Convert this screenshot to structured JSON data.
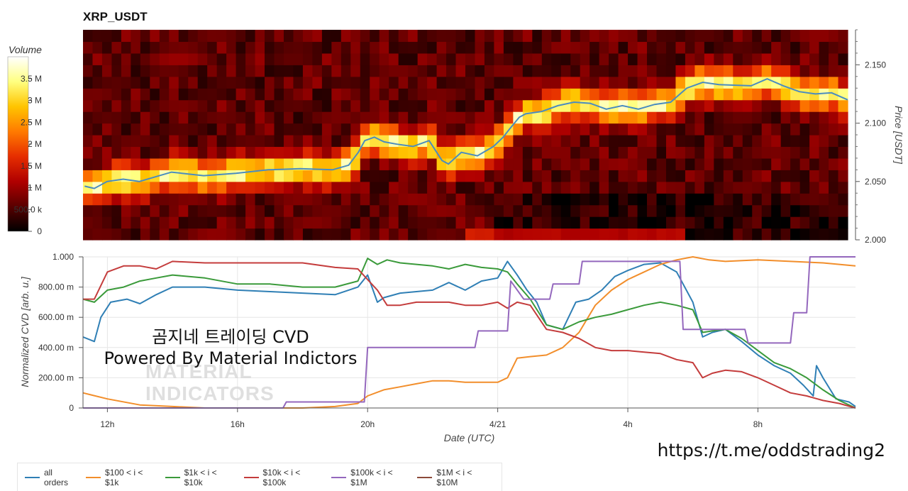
{
  "title": "XRP_USDT",
  "colorbar": {
    "title": "Volume",
    "ticks": [
      {
        "value": 0,
        "label": "0"
      },
      {
        "value": 500000,
        "label": "500.0 k"
      },
      {
        "value": 1000000,
        "label": "1 M"
      },
      {
        "value": 1500000,
        "label": "1.5 M"
      },
      {
        "value": 2000000,
        "label": "2 M"
      },
      {
        "value": 2500000,
        "label": "2.5 M"
      },
      {
        "value": 3000000,
        "label": "3 M"
      },
      {
        "value": 3500000,
        "label": "3.5 M"
      }
    ],
    "max": 4000000,
    "palette": [
      "#000000",
      "#5a0000",
      "#b00000",
      "#e62e00",
      "#ff7a00",
      "#ffc400",
      "#ffff80",
      "#ffffff"
    ]
  },
  "overlay_text": [
    "곰지네 트레이딩 CVD",
    "Powered By Material Indictors"
  ],
  "watermark": [
    "MATERIAL",
    "INDICATORS"
  ],
  "url": "https://t.me/oddstrading2",
  "chart_data": [
    {
      "type": "heatmap",
      "title": "XRP_USDT",
      "ylabel": "Price [USDT]",
      "ylim": [
        2.0,
        2.18
      ],
      "yticks": [
        {
          "value": 2.0,
          "label": "2.000"
        },
        {
          "value": 2.05,
          "label": "2.050"
        },
        {
          "value": 2.1,
          "label": "2.100"
        },
        {
          "value": 2.15,
          "label": "2.150"
        }
      ],
      "xlim": [
        11.25,
        35.0
      ],
      "price_line_color": "#4a8cc0",
      "price_line": {
        "x": [
          11.3,
          11.6,
          12.0,
          12.5,
          13.0,
          13.5,
          14.0,
          15.0,
          16.0,
          17.0,
          18.0,
          19.0,
          19.5,
          19.8,
          20.0,
          20.3,
          20.6,
          21.0,
          21.5,
          22.0,
          22.4,
          22.6,
          23.0,
          23.5,
          24.0,
          24.3,
          24.5,
          24.8,
          25.0,
          25.5,
          26.0,
          26.5,
          27.0,
          27.5,
          28.0,
          28.5,
          29.0,
          29.5,
          30.0,
          30.5,
          31.0,
          32.0,
          32.5,
          33.0,
          33.5,
          34.0,
          34.5,
          35.0
        ],
        "y": [
          2.046,
          2.044,
          2.05,
          2.052,
          2.05,
          2.054,
          2.058,
          2.055,
          2.057,
          2.06,
          2.061,
          2.06,
          2.064,
          2.075,
          2.085,
          2.088,
          2.084,
          2.082,
          2.08,
          2.085,
          2.068,
          2.065,
          2.075,
          2.072,
          2.08,
          2.088,
          2.095,
          2.105,
          2.108,
          2.11,
          2.115,
          2.118,
          2.117,
          2.112,
          2.115,
          2.112,
          2.116,
          2.118,
          2.13,
          2.135,
          2.133,
          2.132,
          2.138,
          2.132,
          2.127,
          2.125,
          2.126,
          2.12
        ]
      }
    },
    {
      "type": "line",
      "xlabel": "Date (UTC)",
      "ylabel": "Normalized CVD [arb. u.]",
      "ylim": [
        0,
        1
      ],
      "yticks": [
        {
          "value": 0,
          "label": "0"
        },
        {
          "value": 0.2,
          "label": "200.00 m"
        },
        {
          "value": 0.4,
          "label": "400.00 m"
        },
        {
          "value": 0.6,
          "label": "600.00 m"
        },
        {
          "value": 0.8,
          "label": "800.00 m"
        },
        {
          "value": 1.0,
          "label": "1.000"
        }
      ],
      "xlim": [
        11.25,
        35.0
      ],
      "xticks": [
        {
          "value": 12,
          "label": "12h"
        },
        {
          "value": 16,
          "label": "16h"
        },
        {
          "value": 20,
          "label": "20h"
        },
        {
          "value": 24,
          "label": "4/21"
        },
        {
          "value": 28,
          "label": "4h"
        },
        {
          "value": 32,
          "label": "8h"
        }
      ],
      "legend_position": "bottom",
      "series": [
        {
          "name": "all orders",
          "color": "#2f7fb5",
          "x": [
            11.25,
            11.6,
            11.8,
            12.1,
            12.6,
            13.0,
            13.5,
            14.0,
            15.0,
            16.0,
            17.0,
            18.0,
            19.0,
            19.7,
            20.0,
            20.3,
            20.5,
            21.0,
            21.5,
            22.0,
            22.5,
            23.0,
            23.5,
            24.0,
            24.3,
            24.6,
            24.9,
            25.2,
            25.5,
            26.0,
            26.4,
            26.8,
            27.2,
            27.6,
            28.0,
            28.5,
            29.0,
            29.5,
            30.0,
            30.3,
            30.6,
            31.0,
            31.5,
            32.0,
            32.5,
            33.0,
            33.4,
            33.7,
            33.8,
            34.0,
            34.4,
            34.8,
            35.0
          ],
          "y": [
            0.47,
            0.44,
            0.6,
            0.7,
            0.72,
            0.69,
            0.75,
            0.8,
            0.8,
            0.78,
            0.77,
            0.76,
            0.75,
            0.8,
            0.88,
            0.7,
            0.73,
            0.76,
            0.77,
            0.78,
            0.83,
            0.78,
            0.84,
            0.86,
            0.97,
            0.88,
            0.78,
            0.7,
            0.55,
            0.52,
            0.7,
            0.72,
            0.78,
            0.87,
            0.91,
            0.95,
            0.96,
            0.9,
            0.7,
            0.47,
            0.5,
            0.52,
            0.44,
            0.35,
            0.28,
            0.23,
            0.15,
            0.08,
            0.28,
            0.2,
            0.06,
            0.04,
            0.01
          ]
        },
        {
          "name": "$100 < i < $1k",
          "color": "#f28e2b",
          "x": [
            11.25,
            12.0,
            13.0,
            14.0,
            15.0,
            16.0,
            17.0,
            18.0,
            19.0,
            19.7,
            20.0,
            20.5,
            21.0,
            21.5,
            22.0,
            22.5,
            23.0,
            23.5,
            24.0,
            24.3,
            24.6,
            25.0,
            25.5,
            26.0,
            26.5,
            27.0,
            27.5,
            28.0,
            28.5,
            29.0,
            29.5,
            30.0,
            30.5,
            31.0,
            32.0,
            33.0,
            34.0,
            35.0
          ],
          "y": [
            0.1,
            0.06,
            0.02,
            0.01,
            0.0,
            0.0,
            0.0,
            0.0,
            0.01,
            0.03,
            0.08,
            0.12,
            0.14,
            0.16,
            0.18,
            0.18,
            0.17,
            0.17,
            0.17,
            0.2,
            0.33,
            0.34,
            0.35,
            0.4,
            0.5,
            0.68,
            0.78,
            0.85,
            0.9,
            0.95,
            0.98,
            1.0,
            0.98,
            0.97,
            0.98,
            0.97,
            0.96,
            0.94
          ]
        },
        {
          "name": "$1k < i < $10k",
          "color": "#3a9a3a",
          "x": [
            11.25,
            11.6,
            12.0,
            12.5,
            13.0,
            13.5,
            14.0,
            15.0,
            16.0,
            17.0,
            18.0,
            19.0,
            19.7,
            20.0,
            20.3,
            20.6,
            21.0,
            21.5,
            22.0,
            22.5,
            23.0,
            23.5,
            24.0,
            24.3,
            24.6,
            25.0,
            25.5,
            26.0,
            26.5,
            27.0,
            27.5,
            28.0,
            28.5,
            29.0,
            29.5,
            30.0,
            30.3,
            30.6,
            31.0,
            31.5,
            32.0,
            32.5,
            33.0,
            33.5,
            34.0,
            34.5,
            35.0
          ],
          "y": [
            0.72,
            0.7,
            0.78,
            0.8,
            0.84,
            0.86,
            0.88,
            0.86,
            0.82,
            0.82,
            0.8,
            0.8,
            0.84,
            0.99,
            0.95,
            0.98,
            0.96,
            0.95,
            0.94,
            0.92,
            0.95,
            0.93,
            0.92,
            0.9,
            0.82,
            0.72,
            0.55,
            0.52,
            0.57,
            0.6,
            0.62,
            0.65,
            0.68,
            0.7,
            0.68,
            0.65,
            0.5,
            0.51,
            0.52,
            0.46,
            0.38,
            0.3,
            0.26,
            0.2,
            0.12,
            0.05,
            0.0
          ]
        },
        {
          "name": "$10k < i < $100k",
          "color": "#c43c3c",
          "x": [
            11.25,
            11.6,
            12.0,
            12.5,
            13.0,
            13.5,
            14.0,
            15.0,
            16.0,
            17.0,
            18.0,
            19.0,
            19.7,
            20.0,
            20.3,
            20.6,
            21.0,
            21.5,
            22.0,
            22.5,
            23.0,
            23.5,
            24.0,
            24.3,
            24.6,
            25.0,
            25.5,
            26.0,
            26.5,
            27.0,
            27.5,
            28.0,
            28.5,
            29.0,
            29.5,
            30.0,
            30.3,
            30.6,
            31.0,
            31.5,
            32.0,
            32.5,
            33.0,
            33.5,
            34.0,
            34.5,
            35.0
          ],
          "y": [
            0.72,
            0.72,
            0.9,
            0.94,
            0.94,
            0.92,
            0.97,
            0.96,
            0.96,
            0.96,
            0.96,
            0.93,
            0.92,
            0.85,
            0.78,
            0.68,
            0.68,
            0.7,
            0.7,
            0.7,
            0.68,
            0.68,
            0.7,
            0.66,
            0.7,
            0.68,
            0.52,
            0.5,
            0.46,
            0.4,
            0.38,
            0.38,
            0.37,
            0.36,
            0.32,
            0.3,
            0.2,
            0.23,
            0.25,
            0.24,
            0.2,
            0.15,
            0.1,
            0.08,
            0.05,
            0.03,
            0.0
          ]
        },
        {
          "name": "$100k < i < $1M",
          "color": "#9467bd",
          "x": [
            11.25,
            17.4,
            17.5,
            19.9,
            20.0,
            23.3,
            23.4,
            24.3,
            24.4,
            24.8,
            25.6,
            25.7,
            26.5,
            26.6,
            27.3,
            27.4,
            29.6,
            29.7,
            31.6,
            31.7,
            33.0,
            33.1,
            33.5,
            33.6,
            35.0
          ],
          "y": [
            0.0,
            0.0,
            0.04,
            0.04,
            0.4,
            0.4,
            0.51,
            0.51,
            0.84,
            0.72,
            0.72,
            0.82,
            0.82,
            0.97,
            0.97,
            0.97,
            0.97,
            0.52,
            0.52,
            0.43,
            0.43,
            0.63,
            0.63,
            1.0,
            1.0
          ]
        },
        {
          "name": "$1M < i < $10M",
          "color": "#8c4a3a",
          "x": [],
          "y": []
        }
      ]
    }
  ]
}
